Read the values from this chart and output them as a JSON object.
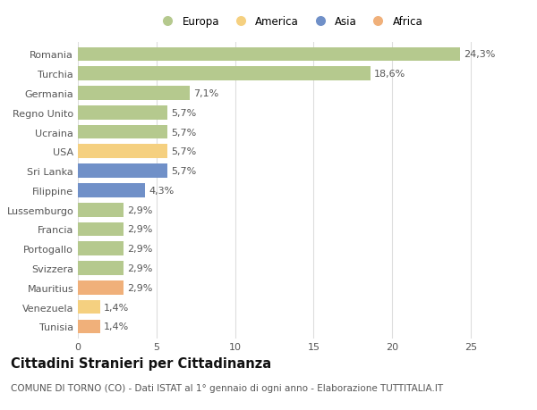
{
  "categories": [
    "Romania",
    "Turchia",
    "Germania",
    "Regno Unito",
    "Ucraina",
    "USA",
    "Sri Lanka",
    "Filippine",
    "Lussemburgo",
    "Francia",
    "Portogallo",
    "Svizzera",
    "Mauritius",
    "Venezuela",
    "Tunisia"
  ],
  "values": [
    24.3,
    18.6,
    7.1,
    5.7,
    5.7,
    5.7,
    5.7,
    4.3,
    2.9,
    2.9,
    2.9,
    2.9,
    2.9,
    1.4,
    1.4
  ],
  "labels": [
    "24,3%",
    "18,6%",
    "7,1%",
    "5,7%",
    "5,7%",
    "5,7%",
    "5,7%",
    "4,3%",
    "2,9%",
    "2,9%",
    "2,9%",
    "2,9%",
    "2,9%",
    "1,4%",
    "1,4%"
  ],
  "colors": [
    "#b5c98e",
    "#b5c98e",
    "#b5c98e",
    "#b5c98e",
    "#b5c98e",
    "#f5d080",
    "#7090c8",
    "#7090c8",
    "#b5c98e",
    "#b5c98e",
    "#b5c98e",
    "#b5c98e",
    "#f0b07a",
    "#f5d080",
    "#f0b07a"
  ],
  "continent_colors": {
    "Europa": "#b5c98e",
    "America": "#f5d080",
    "Asia": "#7090c8",
    "Africa": "#f0b07a"
  },
  "legend_order": [
    "Europa",
    "America",
    "Asia",
    "Africa"
  ],
  "title": "Cittadini Stranieri per Cittadinanza",
  "subtitle": "COMUNE DI TORNO (CO) - Dati ISTAT al 1° gennaio di ogni anno - Elaborazione TUTTITALIA.IT",
  "xlim": [
    0,
    27
  ],
  "xticks": [
    0,
    5,
    10,
    15,
    20,
    25
  ],
  "background_color": "#ffffff",
  "grid_color": "#dddddd",
  "bar_height": 0.72,
  "title_fontsize": 10.5,
  "subtitle_fontsize": 7.5,
  "tick_fontsize": 8,
  "value_fontsize": 8
}
